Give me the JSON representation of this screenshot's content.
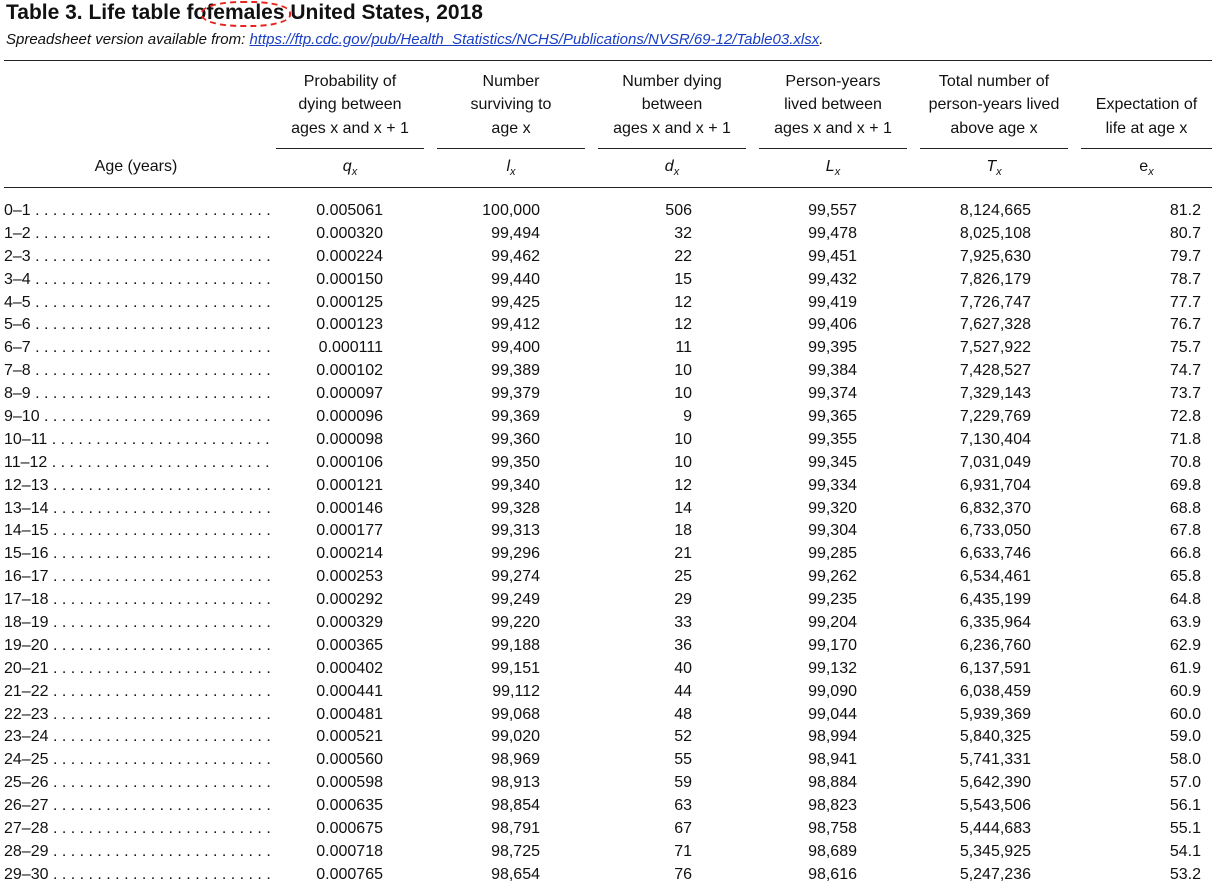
{
  "title_prefix": "Table 3. Life table fo",
  "title_highlight": "females",
  "title_suffix": " United States, 2018",
  "subtitle_prefix": "Spreadsheet version available from: ",
  "subtitle_link": "https://ftp.cdc.gov/pub/Health_Statistics/NCHS/Publications/NVSR/69-12/Table03.xlsx",
  "subtitle_suffix": ".",
  "age_header": "Age (years)",
  "columns": [
    {
      "header": "Probability of\ndying between\nages x and x + 1",
      "symbol": "q",
      "sub": "x"
    },
    {
      "header": "Number\nsurviving to\nage x",
      "symbol": "l",
      "sub": "x"
    },
    {
      "header": "Number dying\nbetween\nages x and x + 1",
      "symbol": "d",
      "sub": "x"
    },
    {
      "header": "Person-years\nlived between\nages x and x + 1",
      "symbol": "L",
      "sub": "x"
    },
    {
      "header": "Total number of\nperson-years lived\nabove age x",
      "symbol": "T",
      "sub": "x"
    },
    {
      "header": "Expectation of\nlife at age x",
      "symbol": "e",
      "sub": "x"
    }
  ],
  "rows": [
    [
      "0–1",
      "0.005061",
      "100,000",
      "506",
      "99,557",
      "8,124,665",
      "81.2"
    ],
    [
      "1–2",
      "0.000320",
      "99,494",
      "32",
      "99,478",
      "8,025,108",
      "80.7"
    ],
    [
      "2–3",
      "0.000224",
      "99,462",
      "22",
      "99,451",
      "7,925,630",
      "79.7"
    ],
    [
      "3–4",
      "0.000150",
      "99,440",
      "15",
      "99,432",
      "7,826,179",
      "78.7"
    ],
    [
      "4–5",
      "0.000125",
      "99,425",
      "12",
      "99,419",
      "7,726,747",
      "77.7"
    ],
    [
      "5–6",
      "0.000123",
      "99,412",
      "12",
      "99,406",
      "7,627,328",
      "76.7"
    ],
    [
      "6–7",
      "0.000111",
      "99,400",
      "11",
      "99,395",
      "7,527,922",
      "75.7"
    ],
    [
      "7–8",
      "0.000102",
      "99,389",
      "10",
      "99,384",
      "7,428,527",
      "74.7"
    ],
    [
      "8–9",
      "0.000097",
      "99,379",
      "10",
      "99,374",
      "7,329,143",
      "73.7"
    ],
    [
      "9–10",
      "0.000096",
      "99,369",
      "9",
      "99,365",
      "7,229,769",
      "72.8"
    ],
    [
      "10–11",
      "0.000098",
      "99,360",
      "10",
      "99,355",
      "7,130,404",
      "71.8"
    ],
    [
      "11–12",
      "0.000106",
      "99,350",
      "10",
      "99,345",
      "7,031,049",
      "70.8"
    ],
    [
      "12–13",
      "0.000121",
      "99,340",
      "12",
      "99,334",
      "6,931,704",
      "69.8"
    ],
    [
      "13–14",
      "0.000146",
      "99,328",
      "14",
      "99,320",
      "6,832,370",
      "68.8"
    ],
    [
      "14–15",
      "0.000177",
      "99,313",
      "18",
      "99,304",
      "6,733,050",
      "67.8"
    ],
    [
      "15–16",
      "0.000214",
      "99,296",
      "21",
      "99,285",
      "6,633,746",
      "66.8"
    ],
    [
      "16–17",
      "0.000253",
      "99,274",
      "25",
      "99,262",
      "6,534,461",
      "65.8"
    ],
    [
      "17–18",
      "0.000292",
      "99,249",
      "29",
      "99,235",
      "6,435,199",
      "64.8"
    ],
    [
      "18–19",
      "0.000329",
      "99,220",
      "33",
      "99,204",
      "6,335,964",
      "63.9"
    ],
    [
      "19–20",
      "0.000365",
      "99,188",
      "36",
      "99,170",
      "6,236,760",
      "62.9"
    ],
    [
      "20–21",
      "0.000402",
      "99,151",
      "40",
      "99,132",
      "6,137,591",
      "61.9"
    ],
    [
      "21–22",
      "0.000441",
      "99,112",
      "44",
      "99,090",
      "6,038,459",
      "60.9"
    ],
    [
      "22–23",
      "0.000481",
      "99,068",
      "48",
      "99,044",
      "5,939,369",
      "60.0"
    ],
    [
      "23–24",
      "0.000521",
      "99,020",
      "52",
      "98,994",
      "5,840,325",
      "59.0"
    ],
    [
      "24–25",
      "0.000560",
      "98,969",
      "55",
      "98,941",
      "5,741,331",
      "58.0"
    ],
    [
      "25–26",
      "0.000598",
      "98,913",
      "59",
      "98,884",
      "5,642,390",
      "57.0"
    ],
    [
      "26–27",
      "0.000635",
      "98,854",
      "63",
      "98,823",
      "5,543,506",
      "56.1"
    ],
    [
      "27–28",
      "0.000675",
      "98,791",
      "67",
      "98,758",
      "5,444,683",
      "55.1"
    ],
    [
      "28–29",
      "0.000718",
      "98,725",
      "71",
      "98,689",
      "5,345,925",
      "54.1"
    ],
    [
      "29–30",
      "0.000765",
      "98,654",
      "76",
      "98,616",
      "5,247,236",
      "53.2"
    ]
  ],
  "colors": {
    "highlight": "#e8231c",
    "link": "#1a3fc4"
  }
}
